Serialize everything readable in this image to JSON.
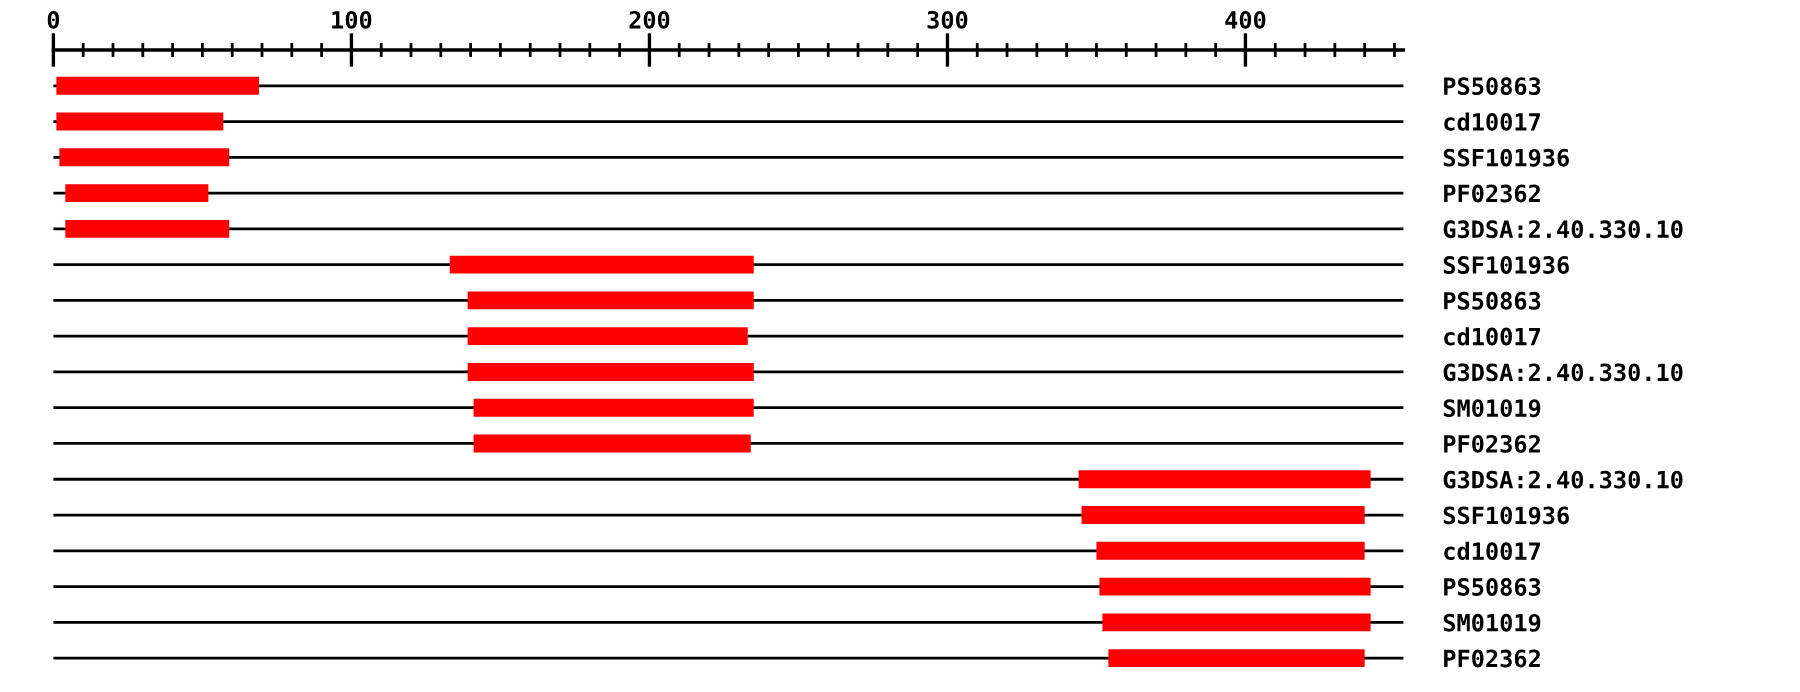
{
  "chart_data": {
    "type": "bar",
    "orientation": "horizontal",
    "categories": [
      "PS50863",
      "cd10017",
      "SSF101936",
      "PF02362",
      "G3DSA:2.40.330.10",
      "SSF101936",
      "PS50863",
      "cd10017",
      "G3DSA:2.40.330.10",
      "SM01019",
      "PF02362",
      "G3DSA:2.40.330.10",
      "SSF101936",
      "cd10017",
      "PS50863",
      "SM01019",
      "PF02362"
    ],
    "base": [
      1,
      1,
      2,
      4,
      4,
      133,
      139,
      139,
      139,
      141,
      141,
      344,
      345,
      350,
      351,
      352,
      354
    ],
    "values": [
      68,
      56,
      57,
      48,
      55,
      102,
      96,
      94,
      96,
      94,
      93,
      98,
      95,
      90,
      91,
      90,
      86
    ],
    "color": "#ff0000",
    "xlim": [
      0,
      453
    ],
    "xticks": [
      0,
      {
        "value": 10,
        "label": null
      },
      {
        "value": 20,
        "label": null
      },
      {
        "value": 30,
        "label": null
      },
      {
        "value": 40,
        "label": null
      },
      {
        "value": 50,
        "label": null
      },
      {
        "value": 60,
        "label": null
      },
      {
        "value": 70,
        "label": null
      },
      {
        "value": 80,
        "label": null
      },
      {
        "value": 90,
        "label": null
      },
      100,
      {
        "value": 110,
        "label": null
      },
      {
        "value": 120,
        "label": null
      },
      {
        "value": 130,
        "label": null
      },
      {
        "value": 140,
        "label": null
      },
      {
        "value": 150,
        "label": null
      },
      {
        "value": 160,
        "label": null
      },
      {
        "value": 170,
        "label": null
      },
      {
        "value": 180,
        "label": null
      },
      {
        "value": 190,
        "label": null
      },
      200,
      {
        "value": 210,
        "label": null
      },
      {
        "value": 220,
        "label": null
      },
      {
        "value": 230,
        "label": null
      },
      {
        "value": 240,
        "label": null
      },
      {
        "value": 250,
        "label": null
      },
      {
        "value": 260,
        "label": null
      },
      {
        "value": 270,
        "label": null
      },
      {
        "value": 280,
        "label": null
      },
      {
        "value": 290,
        "label": null
      },
      300,
      {
        "value": 310,
        "label": null
      },
      {
        "value": 320,
        "label": null
      },
      {
        "value": 330,
        "label": null
      },
      {
        "value": 340,
        "label": null
      },
      {
        "value": 350,
        "label": null
      },
      {
        "value": 360,
        "label": null
      },
      {
        "value": 370,
        "label": null
      },
      {
        "value": 380,
        "label": null
      },
      {
        "value": 390,
        "label": null
      },
      400,
      {
        "value": 410,
        "label": null
      },
      {
        "value": 420,
        "label": null
      },
      {
        "value": 430,
        "label": null
      },
      {
        "value": 440,
        "label": null
      },
      {
        "value": 450,
        "label": null
      }
    ],
    "grid": "y"
  }
}
